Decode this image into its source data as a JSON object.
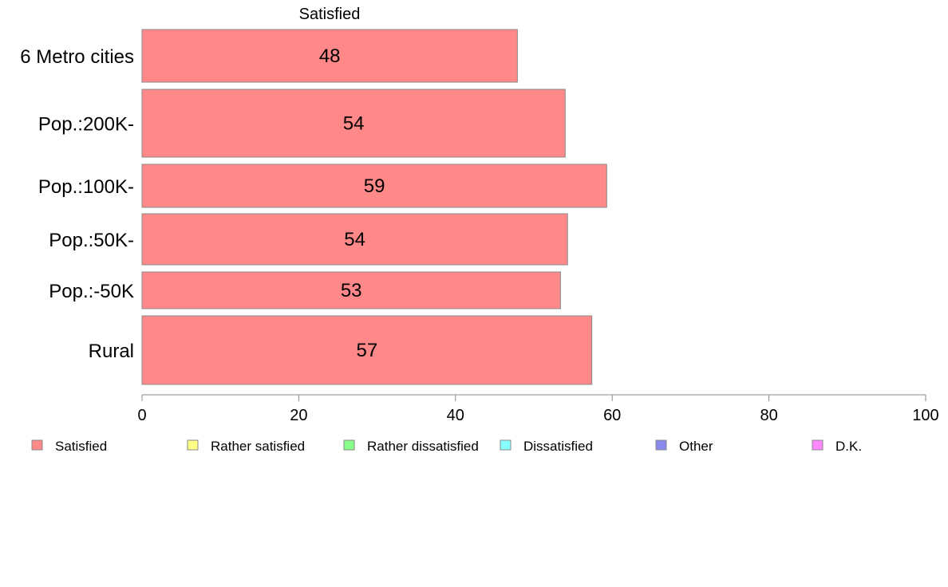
{
  "chart_data": {
    "type": "bar",
    "orientation": "horizontal",
    "title": "Satisfied",
    "xlabel": "",
    "ylabel": "",
    "xlim": [
      0,
      100
    ],
    "x_ticks": [
      "0",
      "20",
      "40",
      "60",
      "80",
      "100"
    ],
    "grid": false,
    "categories": [
      "6 Metro cities",
      "Pop.:200K-",
      "Pop.:100K-",
      "Pop.:50K-",
      "Pop.:-50K",
      "Rural"
    ],
    "series": [
      {
        "name": "Satisfied",
        "color": "#ff8888",
        "values": [
          47.9,
          54.0,
          59.3,
          54.3,
          53.4,
          57.4
        ],
        "labels": [
          "48",
          "54",
          "59",
          "54",
          "53",
          "57"
        ]
      }
    ],
    "legend": {
      "placement": "bottom",
      "entries": [
        {
          "label": "Satisfied",
          "color": "#ff8888"
        },
        {
          "label": "Rather satisfied",
          "color": "#ffff88"
        },
        {
          "label": "Rather dissatisfied",
          "color": "#88ff88"
        },
        {
          "label": "Dissatisfied",
          "color": "#88ffff"
        },
        {
          "label": "Other",
          "color": "#8888ee"
        },
        {
          "label": "D.K.",
          "color": "#ff88ff"
        }
      ]
    }
  }
}
